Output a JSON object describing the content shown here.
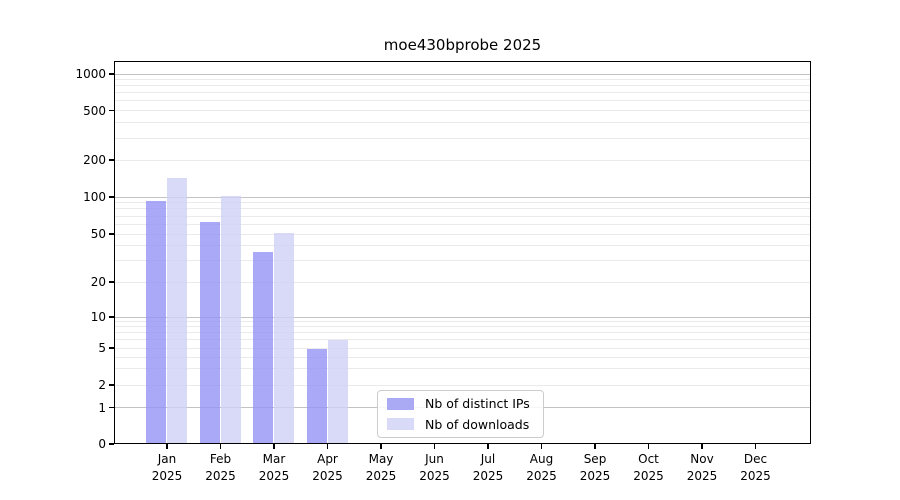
{
  "title": "moe430bprobe 2025",
  "legend": {
    "items": [
      {
        "label": "Nb of distinct IPs"
      },
      {
        "label": "Nb of downloads"
      }
    ]
  },
  "colors": {
    "distinct_ips_bar": "rgba(148,148,246,0.8)",
    "downloads_bar": "rgba(207,207,246,0.8)",
    "distinct_ips_solid": "#a9a9f4",
    "downloads_solid": "#d9d9f8",
    "grid_major": "#c3c3c3",
    "grid_minor": "#eaeaea"
  },
  "x_axis": {
    "months": [
      "Jan",
      "Feb",
      "Mar",
      "Apr",
      "May",
      "Jun",
      "Jul",
      "Aug",
      "Sep",
      "Oct",
      "Nov",
      "Dec"
    ],
    "year": "2025"
  },
  "y_axis": {
    "tick_labels": [
      "0",
      "1",
      "2",
      "5",
      "10",
      "20",
      "50",
      "100",
      "200",
      "500",
      "1000"
    ]
  },
  "chart_data": {
    "type": "bar",
    "title": "moe430bprobe 2025",
    "categories": [
      "Jan 2025",
      "Feb 2025",
      "Mar 2025",
      "Apr 2025",
      "May 2025",
      "Jun 2025",
      "Jul 2025",
      "Aug 2025",
      "Sep 2025",
      "Oct 2025",
      "Nov 2025",
      "Dec 2025"
    ],
    "series": [
      {
        "name": "Nb of distinct IPs",
        "color": "#a9a9f4",
        "values": [
          93,
          63,
          36,
          5,
          0,
          0,
          0,
          0,
          0,
          0,
          0,
          0
        ]
      },
      {
        "name": "Nb of downloads",
        "color": "#d9d9f8",
        "values": [
          145,
          103,
          51,
          6,
          0,
          0,
          0,
          0,
          0,
          0,
          0,
          0
        ]
      }
    ],
    "xlabel": "",
    "ylabel": "",
    "y_ticks": [
      0,
      1,
      2,
      5,
      10,
      20,
      50,
      100,
      200,
      500,
      1000
    ],
    "y_scale": "symlog",
    "ylim": [
      0,
      1200
    ],
    "grid": true,
    "legend_position": "lower center"
  }
}
